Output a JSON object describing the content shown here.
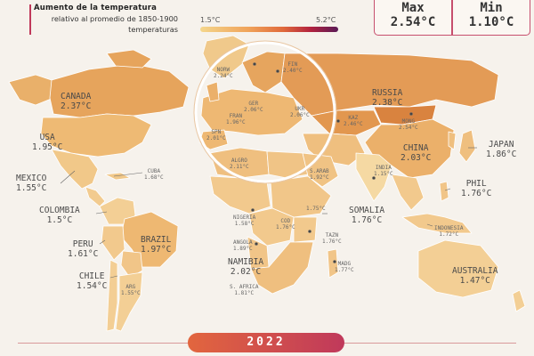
{
  "legend": {
    "title": "Aumento de la temperatura",
    "subtitle": "relativo al promedio de 1850-1900 temperaturas",
    "min_label": "1.5°C",
    "max_label": "5.2°C"
  },
  "stats": {
    "max_label": "Max",
    "max_value": "2.54°C",
    "min_label": "Min",
    "min_value": "1.10°C"
  },
  "year": "2022",
  "colors": {
    "land_low": "#f5d9a3",
    "land_mid": "#efc07c",
    "land_high": "#e39a55",
    "land_top": "#d9833f",
    "accent": "#c0395b",
    "ocean": "#f6f2ec"
  },
  "countries": {
    "canada": {
      "name": "CANADA",
      "value": "2.37°C"
    },
    "usa": {
      "name": "USA",
      "value": "1.95°C"
    },
    "mexico": {
      "name": "MEXICO",
      "value": "1.55°C"
    },
    "cuba": {
      "name": "CUBA",
      "value": "1.68°C"
    },
    "colombia": {
      "name": "COLOMBIA",
      "value": "1.5°C"
    },
    "peru": {
      "name": "PERU",
      "value": "1.61°C"
    },
    "brazil": {
      "name": "BRAZIL",
      "value": "1.97°C"
    },
    "chile": {
      "name": "CHILE",
      "value": "1.54°C"
    },
    "arg": {
      "name": "ARG",
      "value": "1.55°C"
    },
    "norw": {
      "name": "NORW",
      "value": "2.24°C"
    },
    "fin": {
      "name": "FIN",
      "value": "2.40°C"
    },
    "ger": {
      "name": "GER",
      "value": "2.06°C"
    },
    "fran": {
      "name": "FRAN",
      "value": "1.96°C"
    },
    "spn": {
      "name": "SPN",
      "value": "2.01°C"
    },
    "ukr": {
      "name": "UKR",
      "value": "2.06°C"
    },
    "kaz": {
      "name": "KAZ",
      "value": "2.46°C"
    },
    "mong": {
      "name": "MONG",
      "value": "2.54°C"
    },
    "russia": {
      "name": "RUSSIA",
      "value": "2.38°C"
    },
    "china": {
      "name": "CHINA",
      "value": "2.03°C"
    },
    "japan": {
      "name": "JAPAN",
      "value": "1.86°C"
    },
    "india": {
      "name": "INDIA",
      "value": "1.15°C"
    },
    "phil": {
      "name": "PHIL",
      "value": "1.76°C"
    },
    "indonesia": {
      "name": "INDONESIA",
      "value": "1.72°C"
    },
    "australia": {
      "name": "AUSTRALIA",
      "value": "1.47°C"
    },
    "algeria": {
      "name": "ALGRO",
      "value": "2.11°C"
    },
    "sarab": {
      "name": "S.ARAB",
      "value": "1.92°C"
    },
    "nigeria": {
      "name": "NIGERIA",
      "value": "1.58°C"
    },
    "cod": {
      "name": "COD",
      "value": "1.76°C"
    },
    "ethiopia": {
      "name": "",
      "value": "1.75°C"
    },
    "somalia": {
      "name": "SOMALIA",
      "value": "1.76°C"
    },
    "tazn": {
      "name": "TAZN",
      "value": "1.76°C"
    },
    "angola": {
      "name": "ANGOLA",
      "value": "1.89°C"
    },
    "namibia": {
      "name": "NAMIBIA",
      "value": "2.02°C"
    },
    "safrica": {
      "name": "S. AFRICA",
      "value": "1.81°C"
    },
    "madg": {
      "name": "MADG",
      "value": "1.77°C"
    }
  }
}
